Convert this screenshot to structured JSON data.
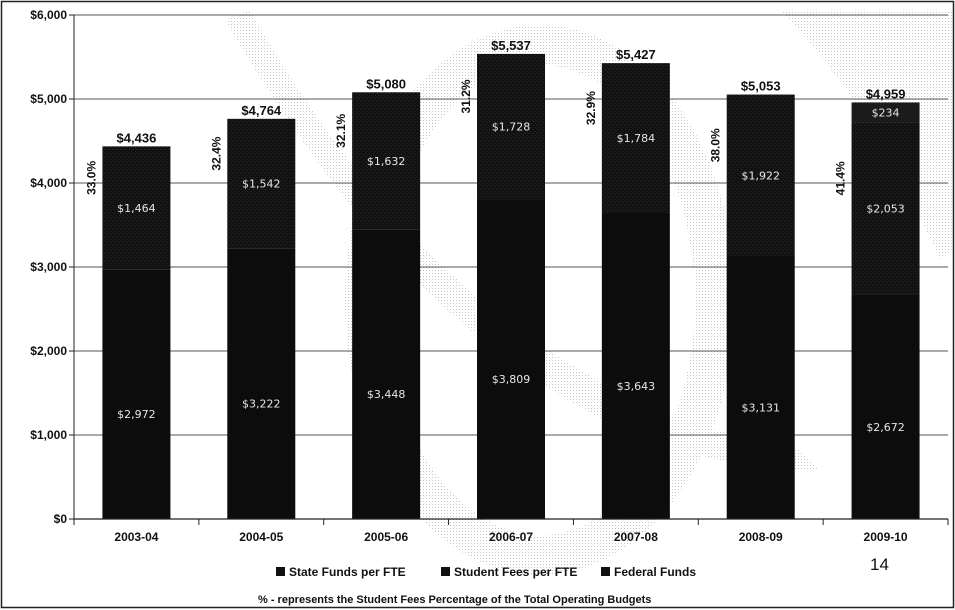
{
  "page_number": "14",
  "note": "% - represents the Student Fees Percentage of the Total Operating Budgets",
  "chart_data": {
    "type": "bar",
    "stacked": true,
    "categories": [
      "2003-04",
      "2004-05",
      "2005-06",
      "2006-07",
      "2007-08",
      "2008-09",
      "2009-10"
    ],
    "series": [
      {
        "name": "State Funds per FTE",
        "values": [
          2972,
          3222,
          3448,
          3809,
          3643,
          3131,
          2672
        ],
        "labels": [
          "$2,972",
          "$3,222",
          "$3,448",
          "$3,809",
          "$3,643",
          "$3,131",
          "$2,672"
        ],
        "color": "#0a0a0a"
      },
      {
        "name": "Student Fees per FTE",
        "values": [
          1464,
          1542,
          1632,
          1728,
          1784,
          1922,
          2053
        ],
        "labels": [
          "$1,464",
          "$1,542",
          "$1,632",
          "$1,728",
          "$1,784",
          "$1,922",
          "$2,053"
        ],
        "color": "#1c1c1c"
      },
      {
        "name": "Federal Funds",
        "values": [
          0,
          0,
          0,
          0,
          0,
          0,
          234
        ],
        "labels": [
          "",
          "",
          "",
          "",
          "",
          "",
          "$234"
        ],
        "color": "#2a2a2a"
      }
    ],
    "totals": [
      "$4,436",
      "$4,764",
      "$5,080",
      "$5,537",
      "$5,427",
      "$5,053",
      "$4,959"
    ],
    "total_values": [
      4436,
      4764,
      5080,
      5537,
      5427,
      5053,
      4959
    ],
    "percentages": [
      "33.0%",
      "32.4%",
      "32.1%",
      "31.2%",
      "32.9%",
      "38.0%",
      "41.4%"
    ],
    "ylim": [
      0,
      6000
    ],
    "yticks": [
      0,
      1000,
      2000,
      3000,
      4000,
      5000,
      6000
    ],
    "ytick_labels": [
      "$0",
      "$1,000",
      "$2,000",
      "$3,000",
      "$4,000",
      "$5,000",
      "$6,000"
    ],
    "grid": true,
    "legend_position": "bottom"
  }
}
